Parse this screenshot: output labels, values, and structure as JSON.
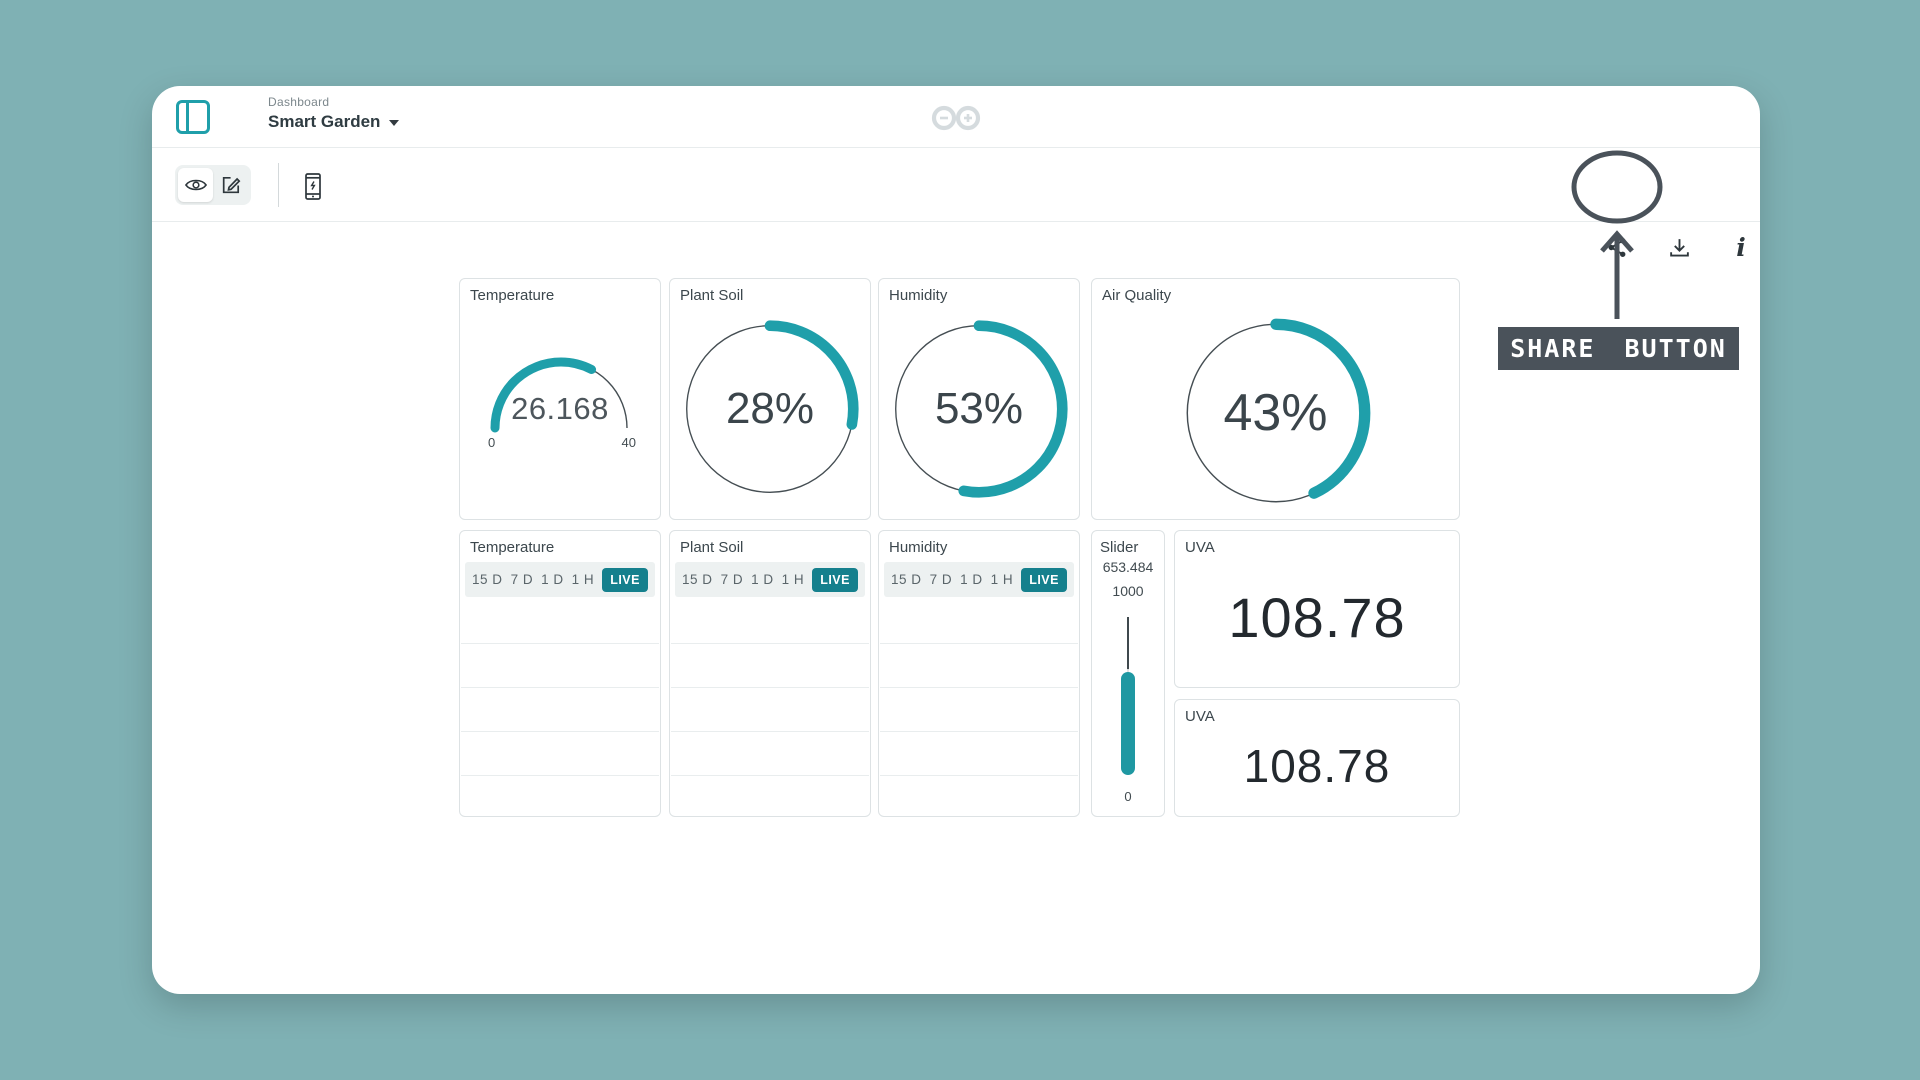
{
  "header": {
    "breadcrumb": "Dashboard",
    "title": "Smart Garden"
  },
  "annotation": {
    "label": "SHARE BUTTON"
  },
  "widgets": {
    "temperature_gauge": {
      "title": "Temperature",
      "value": "26.168",
      "min_label": "0",
      "max_label": "40",
      "percent": 65.4
    },
    "plant_soil": {
      "title": "Plant Soil",
      "value": "28%",
      "percent": 28
    },
    "humidity": {
      "title": "Humidity",
      "value": "53%",
      "percent": 53
    },
    "air_quality": {
      "title": "Air Quality",
      "value": "43%",
      "percent": 43
    },
    "charts": [
      {
        "title": "Temperature",
        "ranges": [
          "15 D",
          "7 D",
          "1 D",
          "1 H"
        ],
        "live": "LIVE"
      },
      {
        "title": "Plant Soil",
        "ranges": [
          "15 D",
          "7 D",
          "1 D",
          "1 H"
        ],
        "live": "LIVE"
      },
      {
        "title": "Humidity",
        "ranges": [
          "15 D",
          "7 D",
          "1 D",
          "1 H"
        ],
        "live": "LIVE"
      }
    ],
    "slider": {
      "title": "Slider",
      "value": "653.484",
      "max_label": "1000",
      "min_label": "0",
      "percent": 65.3
    },
    "uva_primary": {
      "title": "UVA",
      "value": "108.78"
    },
    "uva_secondary": {
      "title": "UVA",
      "value": "108.78"
    }
  },
  "colors": {
    "page_background": "#7fb1b4",
    "accent_teal": "#1f9faa",
    "accent_teal_dark": "#15808d",
    "annotation_gray": "#4a525a"
  }
}
